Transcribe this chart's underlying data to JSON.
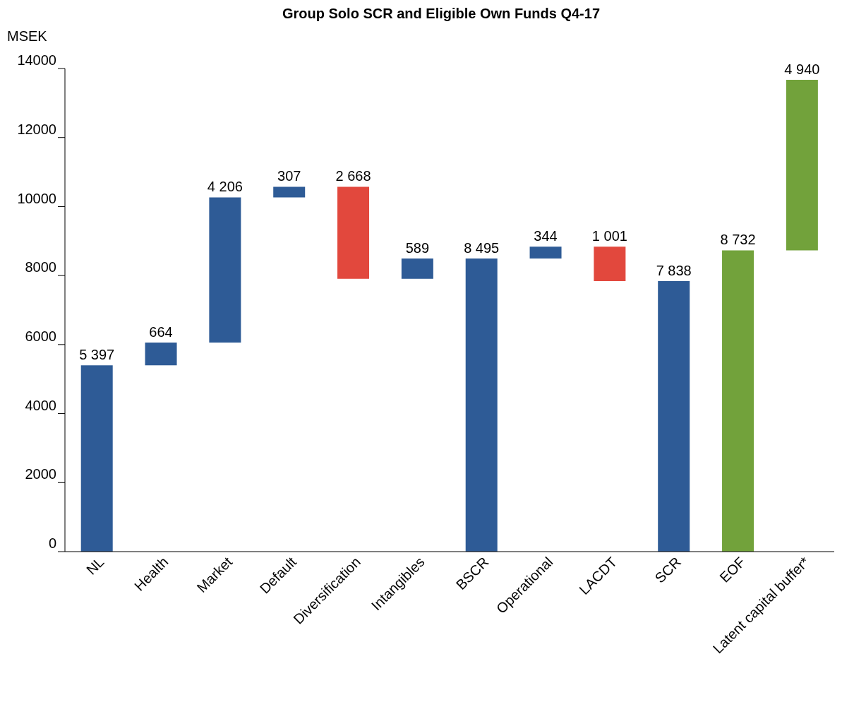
{
  "chart_data": {
    "type": "bar",
    "title": "Group Solo SCR and Eligible Own Funds Q4-17",
    "ylabel": "MSEK",
    "categories": [
      "NL",
      "Health",
      "Market",
      "Default",
      "Diversification",
      "Intangibles",
      "BSCR",
      "Operational",
      "LACDT",
      "SCR",
      "EOF",
      "Latent capital buffer*"
    ],
    "values": [
      5397,
      664,
      4206,
      307,
      2668,
      589,
      8495,
      344,
      1001,
      7838,
      8732,
      4940
    ],
    "base": [
      0,
      5397,
      6061,
      10267,
      7906,
      7906,
      0,
      8495,
      7838,
      0,
      0,
      8732
    ],
    "colors": [
      "#2e5b96",
      "#2e5b96",
      "#2e5b96",
      "#2e5b96",
      "#e2483d",
      "#2e5b96",
      "#2e5b96",
      "#2e5b96",
      "#e2483d",
      "#2e5b96",
      "#72a23b",
      "#72a23b"
    ],
    "value_labels": [
      "5 397",
      "664",
      "4 206",
      "307",
      "2 668",
      "589",
      "8 495",
      "344",
      "1 001",
      "7 838",
      "8 732",
      "4 940"
    ],
    "ylim": [
      0,
      14000
    ],
    "yticks": [
      0,
      2000,
      4000,
      6000,
      8000,
      10000,
      12000,
      14000
    ],
    "grid": false,
    "legend": false
  }
}
